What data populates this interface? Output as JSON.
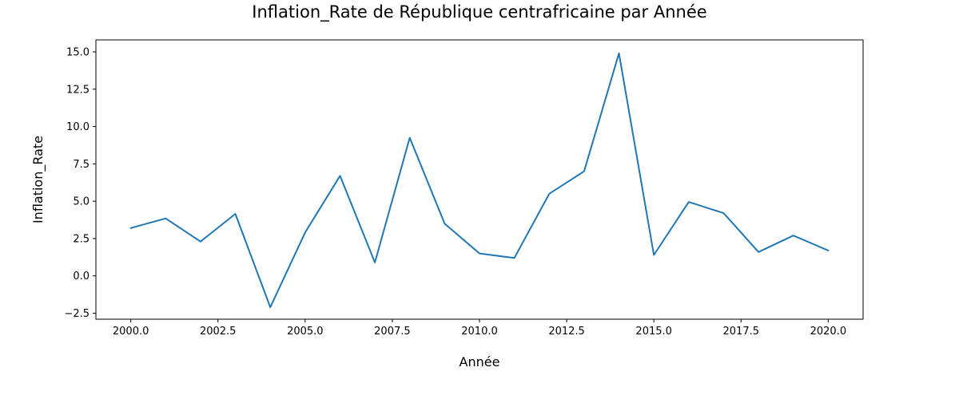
{
  "chart_data": {
    "type": "line",
    "title": "Inflation_Rate de République centrafricaine par Année",
    "xlabel": "Année",
    "ylabel": "Inflation_Rate",
    "xlim": [
      1999.0,
      2021.0
    ],
    "ylim": [
      -2.9,
      15.8
    ],
    "xticks": [
      2000.0,
      2002.5,
      2005.0,
      2007.5,
      2010.0,
      2012.5,
      2015.0,
      2017.5,
      2020.0
    ],
    "xtick_labels": [
      "2000.0",
      "2002.5",
      "2005.0",
      "2007.5",
      "2010.0",
      "2012.5",
      "2015.0",
      "2017.5",
      "2020.0"
    ],
    "yticks": [
      -2.5,
      0.0,
      2.5,
      5.0,
      7.5,
      10.0,
      12.5,
      15.0
    ],
    "ytick_labels": [
      "−2.5",
      "0.0",
      "2.5",
      "5.0",
      "7.5",
      "10.0",
      "12.5",
      "15.0"
    ],
    "grid": false,
    "series": [
      {
        "color": "#1f77b4",
        "x": [
          2000,
          2001,
          2002,
          2003,
          2004,
          2005,
          2006,
          2007,
          2008,
          2009,
          2010,
          2011,
          2012,
          2013,
          2014,
          2015,
          2016,
          2017,
          2018,
          2019,
          2020
        ],
        "y": [
          3.2,
          3.85,
          2.3,
          4.15,
          -2.1,
          2.9,
          6.7,
          0.9,
          9.25,
          3.5,
          1.5,
          1.2,
          5.5,
          7.0,
          14.9,
          1.4,
          4.95,
          4.2,
          1.6,
          2.7,
          1.7
        ]
      }
    ]
  }
}
